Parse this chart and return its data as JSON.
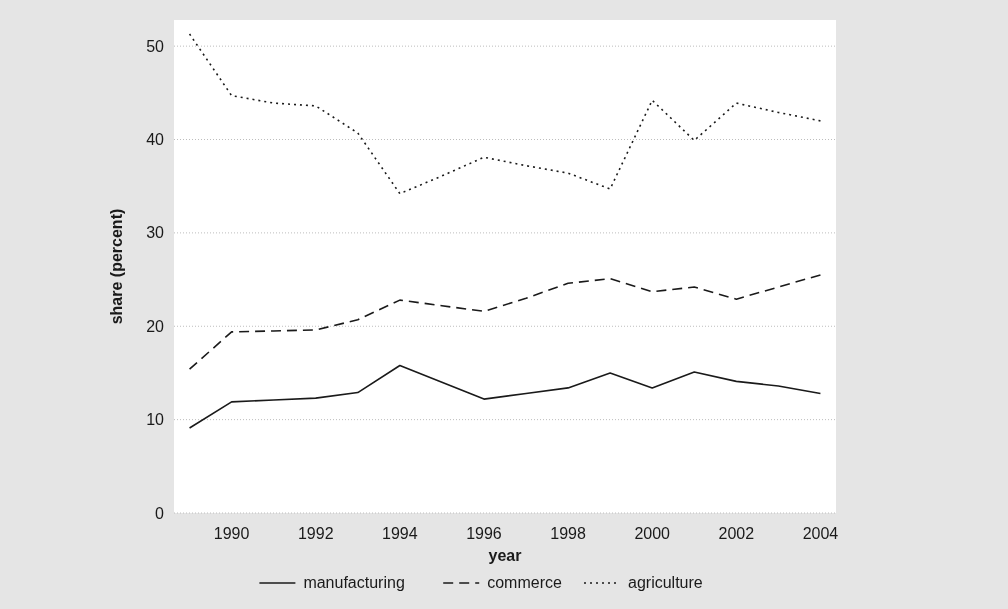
{
  "chart_data": {
    "type": "line",
    "xlabel": "year",
    "ylabel": "share (percent)",
    "x": [
      1989,
      1990,
      1991,
      1992,
      1993,
      1994,
      1995,
      1996,
      1997,
      1998,
      1999,
      2000,
      2001,
      2002,
      2003,
      2004
    ],
    "xlim": [
      1988.63,
      2004.37
    ],
    "xticks": [
      1990,
      1992,
      1994,
      1996,
      1998,
      2000,
      2002,
      2004
    ],
    "ylim": [
      0,
      52.8
    ],
    "yticks": [
      0,
      10,
      20,
      30,
      40,
      50
    ],
    "grid": "y",
    "legend": "bottom",
    "series": [
      {
        "name": "manufacturing",
        "color": "#1a1a1a",
        "line_style": "solid",
        "values": [
          9.1,
          11.9,
          12.1,
          12.3,
          12.9,
          15.8,
          14.0,
          12.2,
          12.8,
          13.4,
          15.0,
          13.4,
          15.1,
          14.1,
          13.6,
          12.8
        ]
      },
      {
        "name": "commerce",
        "color": "#1a1a1a",
        "line_style": "dashed",
        "values": [
          15.4,
          19.4,
          19.5,
          19.6,
          20.7,
          22.8,
          22.2,
          21.6,
          23.0,
          24.6,
          25.1,
          23.7,
          24.2,
          22.9,
          24.2,
          25.5
        ]
      },
      {
        "name": "agriculture",
        "color": "#1a1a1a",
        "line_style": "dotted",
        "values": [
          51.3,
          44.7,
          43.9,
          43.6,
          40.7,
          34.2,
          36.1,
          38.1,
          37.2,
          36.4,
          34.7,
          44.2,
          39.9,
          43.9,
          42.9,
          42.0
        ]
      }
    ]
  }
}
